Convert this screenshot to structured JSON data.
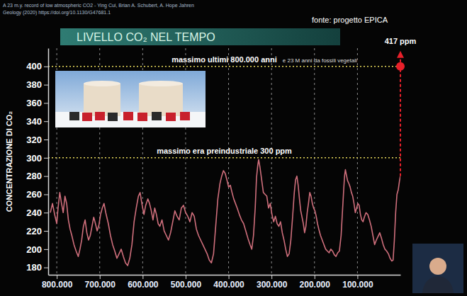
{
  "chart_data": {
    "type": "line",
    "title": "LIVELLO CO₂ NEL TEMPO",
    "source": "fonte: progetto EPICA",
    "citation": [
      "A 23 m.y. record of low atmospheric CO2 - Ying Cui, Brian A. Schubert, A. Hope Jahren",
      "Geology (2020) https://doi.org/10.1130/G47681.1"
    ],
    "y_label": "CONCENTRAZIONE DI CO₂",
    "x": [
      815000,
      810000,
      805000,
      800000,
      797000,
      793000,
      789000,
      785000,
      781000,
      777000,
      773000,
      769000,
      765000,
      760000,
      755000,
      750000,
      746000,
      742000,
      738000,
      734000,
      730000,
      726000,
      722000,
      718000,
      714000,
      710000,
      706000,
      702000,
      698000,
      694000,
      690000,
      686000,
      680000,
      675000,
      670000,
      665000,
      660000,
      655000,
      650000,
      645000,
      640000,
      635000,
      630000,
      625000,
      620000,
      615000,
      610000,
      606000,
      602000,
      597000,
      593000,
      588000,
      584000,
      580000,
      576000,
      572000,
      568000,
      564000,
      560000,
      555000,
      550000,
      545000,
      540000,
      535000,
      530000,
      525000,
      520000,
      515000,
      510000,
      505000,
      500000,
      495000,
      490000,
      485000,
      480000,
      475000,
      470000,
      465000,
      460000,
      455000,
      450000,
      445000,
      440000,
      435000,
      430000,
      425000,
      420000,
      416000,
      412000,
      408000,
      404000,
      400000,
      396000,
      392000,
      388000,
      384000,
      380000,
      375000,
      370000,
      365000,
      360000,
      355000,
      350000,
      346000,
      342000,
      338000,
      335000,
      332000,
      330000,
      327000,
      323000,
      319000,
      315000,
      311000,
      307000,
      303000,
      299000,
      295000,
      291000,
      287000,
      283000,
      279000,
      275000,
      271000,
      267000,
      263000,
      259000,
      255000,
      251000,
      247000,
      244000,
      241000,
      238000,
      235000,
      232000,
      229000,
      226000,
      223000,
      220000,
      217000,
      214000,
      211000,
      208000,
      205000,
      202000,
      199000,
      196000,
      193000,
      190000,
      186000,
      182000,
      178000,
      174000,
      170000,
      166000,
      162000,
      158000,
      154000,
      150000,
      146000,
      142000,
      138000,
      135000,
      132000,
      130000,
      128000,
      126000,
      123000,
      120000,
      117000,
      114000,
      111000,
      108000,
      105000,
      102000,
      99000,
      96000,
      93000,
      90000,
      87000,
      84000,
      80000,
      76000,
      72000,
      68000,
      64000,
      60000,
      56000,
      52000,
      48000,
      44000,
      40000,
      36000,
      32000,
      28000,
      24000,
      20000,
      17000,
      14000,
      11000,
      8000,
      5000,
      2000,
      0
    ],
    "values": [
      240,
      250,
      238,
      228,
      245,
      262,
      250,
      240,
      258,
      250,
      232,
      222,
      215,
      205,
      198,
      192,
      200,
      210,
      225,
      232,
      218,
      210,
      215,
      225,
      235,
      228,
      220,
      226,
      238,
      245,
      250,
      240,
      228,
      215,
      205,
      198,
      190,
      195,
      200,
      192,
      185,
      182,
      190,
      205,
      230,
      245,
      258,
      262,
      250,
      238,
      248,
      255,
      250,
      242,
      232,
      245,
      238,
      228,
      225,
      232,
      220,
      215,
      210,
      218,
      230,
      242,
      236,
      232,
      245,
      248,
      240,
      236,
      230,
      240,
      236,
      222,
      215,
      210,
      205,
      200,
      195,
      188,
      185,
      195,
      225,
      255,
      272,
      280,
      286,
      283,
      276,
      268,
      270,
      262,
      255,
      250,
      245,
      238,
      232,
      228,
      220,
      212,
      205,
      200,
      215,
      245,
      278,
      292,
      298,
      290,
      276,
      262,
      260,
      258,
      245,
      250,
      238,
      230,
      236,
      228,
      225,
      230,
      218,
      210,
      200,
      192,
      195,
      210,
      235,
      262,
      276,
      280,
      270,
      255,
      242,
      235,
      228,
      218,
      225,
      240,
      250,
      262,
      258,
      250,
      245,
      242,
      236,
      228,
      222,
      215,
      210,
      205,
      200,
      198,
      196,
      200,
      198,
      194,
      192,
      196,
      198,
      215,
      240,
      265,
      280,
      287,
      282,
      275,
      272,
      268,
      262,
      258,
      250,
      240,
      245,
      250,
      248,
      238,
      232,
      230,
      235,
      240,
      238,
      232,
      225,
      215,
      205,
      210,
      214,
      218,
      212,
      205,
      200,
      198,
      195,
      190,
      187,
      188,
      210,
      240,
      260,
      265,
      275,
      280
    ],
    "color": "#cf6f7c",
    "xlim": [
      820000,
      0
    ],
    "xticks": [
      {
        "value": 800000,
        "label": "800.000"
      },
      {
        "value": 700000,
        "label": "700.000"
      },
      {
        "value": 600000,
        "label": "600.000"
      },
      {
        "value": 500000,
        "label": "500.000"
      },
      {
        "value": 400000,
        "label": "400.000"
      },
      {
        "value": 300000,
        "label": "300.000"
      },
      {
        "value": 200000,
        "label": "200.000"
      },
      {
        "value": 100000,
        "label": "100.000"
      }
    ],
    "ylim": [
      172,
      420
    ],
    "yticks": [
      180,
      200,
      220,
      240,
      260,
      280,
      300,
      320,
      340,
      360,
      380,
      400
    ],
    "grid": "x",
    "reference_lines": [
      {
        "y": 400,
        "label": "massimo ultimi 800.000 anni",
        "note": "e 23 M anni da fossili vegetali"
      },
      {
        "y": 300,
        "label": "massimo era preindustriale 300 ppm"
      }
    ],
    "current": {
      "x": 0,
      "marker_y": 400,
      "y": 417,
      "label": "417 ppm"
    }
  }
}
